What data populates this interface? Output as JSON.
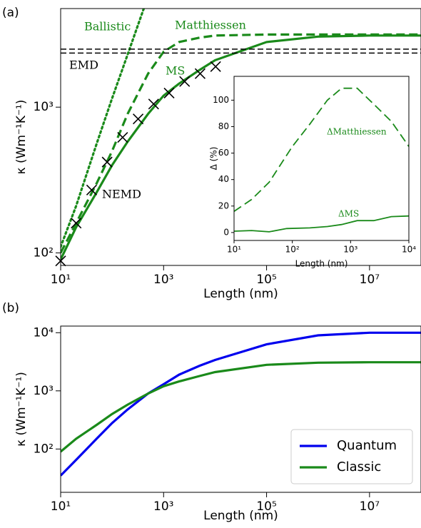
{
  "chart_data": [
    {
      "type": "line",
      "label": "(a)",
      "xlabel": "Length (nm)",
      "ylabel": "κ (Wm⁻¹K⁻¹)",
      "xlog": true,
      "ylog": true,
      "xlim": [
        10,
        100000000
      ],
      "ylim": [
        82,
        4750
      ],
      "xticks": [
        {
          "value": 10,
          "label": "10¹"
        },
        {
          "value": 1000,
          "label": "10³"
        },
        {
          "value": 100000,
          "label": "10⁵"
        },
        {
          "value": 10000000,
          "label": "10⁷"
        }
      ],
      "yticks": [
        {
          "value": 100,
          "label": "10²"
        },
        {
          "value": 1000,
          "label": "10³"
        }
      ],
      "series": [
        {
          "name": "Ballistic",
          "color": "#1a8a1a",
          "style": "dotted",
          "x": [
            10,
            20,
            50,
            100,
            200,
            450
          ],
          "values": [
            110,
            210,
            560,
            1150,
            2300,
            5200
          ]
        },
        {
          "name": "Matthiessen",
          "color": "#1a8a1a",
          "style": "dashed",
          "x": [
            10,
            20,
            50,
            100,
            200,
            500,
            1000,
            2000,
            5000,
            10000,
            100000,
            100000000
          ],
          "values": [
            100,
            160,
            300,
            500,
            900,
            1700,
            2400,
            2800,
            3000,
            3100,
            3150,
            3150
          ]
        },
        {
          "name": "MS",
          "color": "#1a8a1a",
          "style": "solid",
          "x": [
            10,
            20,
            50,
            100,
            200,
            500,
            1000,
            2000,
            5000,
            10000,
            100000,
            1000000,
            10000000,
            100000000
          ],
          "values": [
            90,
            150,
            260,
            400,
            580,
            900,
            1200,
            1450,
            1800,
            2100,
            2800,
            3050,
            3100,
            3100
          ]
        },
        {
          "name": "EMD",
          "color": "#000000",
          "style": "dashed-pair",
          "x": [
            10,
            100000000
          ],
          "values": [
            2500,
            2500
          ],
          "values2": [
            2350,
            2350
          ]
        },
        {
          "name": "NEMD",
          "color": "#000000",
          "style": "x-marker",
          "x": [
            10,
            20,
            40,
            80,
            160,
            320,
            640,
            1280,
            2560,
            5120,
            10240
          ],
          "values": [
            88,
            160,
            270,
            420,
            620,
            830,
            1050,
            1250,
            1500,
            1700,
            1900
          ]
        }
      ]
    },
    {
      "type": "line",
      "xlabel": "Length (nm)",
      "ylabel": "Δ (%)",
      "xlog": true,
      "ylog": false,
      "xlim": [
        10,
        10000
      ],
      "ylim": [
        -6,
        118
      ],
      "xticks": [
        {
          "value": 10,
          "label": "10¹"
        },
        {
          "value": 100,
          "label": "10²"
        },
        {
          "value": 1000,
          "label": "10³"
        },
        {
          "value": 10000,
          "label": "10⁴"
        }
      ],
      "yticks": [
        0,
        20,
        40,
        60,
        80,
        100
      ],
      "series": [
        {
          "name": "ΔMatthiessen",
          "color": "#1a8a1a",
          "style": "dashed",
          "x": [
            10,
            20,
            40,
            100,
            200,
            400,
            700,
            1300,
            2500,
            5000,
            10000
          ],
          "values": [
            16,
            25,
            38,
            65,
            82,
            100,
            109,
            109,
            97,
            84,
            65
          ]
        },
        {
          "name": "ΔMS",
          "color": "#1a8a1a",
          "style": "solid",
          "x": [
            10,
            20,
            40,
            80,
            200,
            400,
            700,
            1300,
            2500,
            5000,
            10000
          ],
          "values": [
            1,
            1.5,
            0.5,
            3,
            3.5,
            4.5,
            6,
            9,
            9,
            12,
            12.5
          ]
        }
      ]
    },
    {
      "type": "line",
      "label": "(b)",
      "xlabel": "Length (nm)",
      "ylabel": "κ (Wm⁻¹K⁻¹)",
      "xlog": true,
      "ylog": true,
      "xlim": [
        10,
        100000000
      ],
      "ylim": [
        18,
        13000
      ],
      "legend": "lower right",
      "xticks": [
        {
          "value": 10,
          "label": "10¹"
        },
        {
          "value": 1000,
          "label": "10³"
        },
        {
          "value": 100000,
          "label": "10⁵"
        },
        {
          "value": 10000000,
          "label": "10⁷"
        }
      ],
      "yticks": [
        {
          "value": 100,
          "label": "10²"
        },
        {
          "value": 1000,
          "label": "10³"
        },
        {
          "value": 10000,
          "label": "10⁴"
        }
      ],
      "series": [
        {
          "name": "Quantum",
          "color": "#0000ee",
          "style": "solid",
          "x": [
            10,
            20,
            50,
            100,
            200,
            500,
            1000,
            2000,
            5000,
            10000,
            100000,
            1000000,
            10000000,
            100000000
          ],
          "values": [
            35,
            65,
            150,
            280,
            480,
            900,
            1300,
            1900,
            2700,
            3400,
            6300,
            9000,
            10000,
            10000
          ]
        },
        {
          "name": "Classic",
          "color": "#1a8a1a",
          "style": "solid",
          "x": [
            10,
            20,
            50,
            100,
            200,
            500,
            1000,
            2000,
            5000,
            10000,
            100000,
            1000000,
            10000000,
            100000000
          ],
          "values": [
            90,
            150,
            260,
            400,
            580,
            900,
            1200,
            1450,
            1800,
            2100,
            2800,
            3050,
            3100,
            3100
          ]
        }
      ]
    }
  ]
}
